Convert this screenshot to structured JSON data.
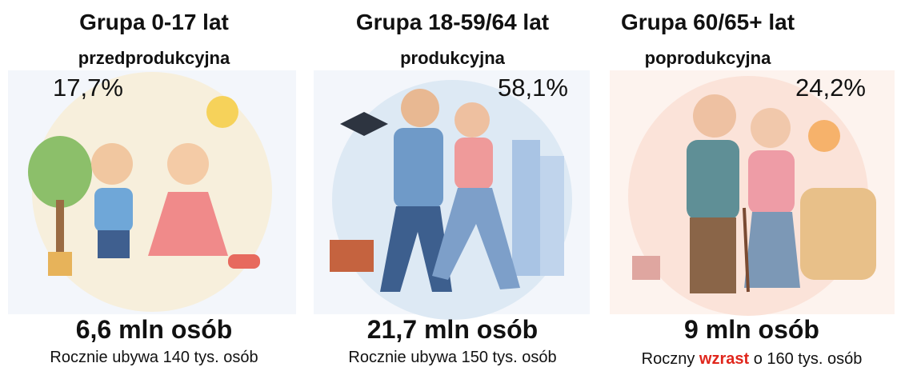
{
  "panels": [
    {
      "title": "Grupa 0-17 lat",
      "subtitle": "przedprodukcyjna",
      "share": "17,7%",
      "count": "6,6 mln osób",
      "note": "Rocznie ubywa 140 tys. osób"
    },
    {
      "title": "Grupa 18-59/64 lat",
      "subtitle": "produkcyjna",
      "share": "58,1%",
      "count": "21,7 mln osób",
      "note": "Rocznie ubywa 150 tys. osób"
    },
    {
      "title": "Grupa 60/65+ lat",
      "subtitle": "poprodukcyjna",
      "share": "24,2%",
      "count": "9 mln osób",
      "note_parts": [
        "Roczny ",
        "wzrast",
        " o 160 tys. osób"
      ]
    }
  ]
}
